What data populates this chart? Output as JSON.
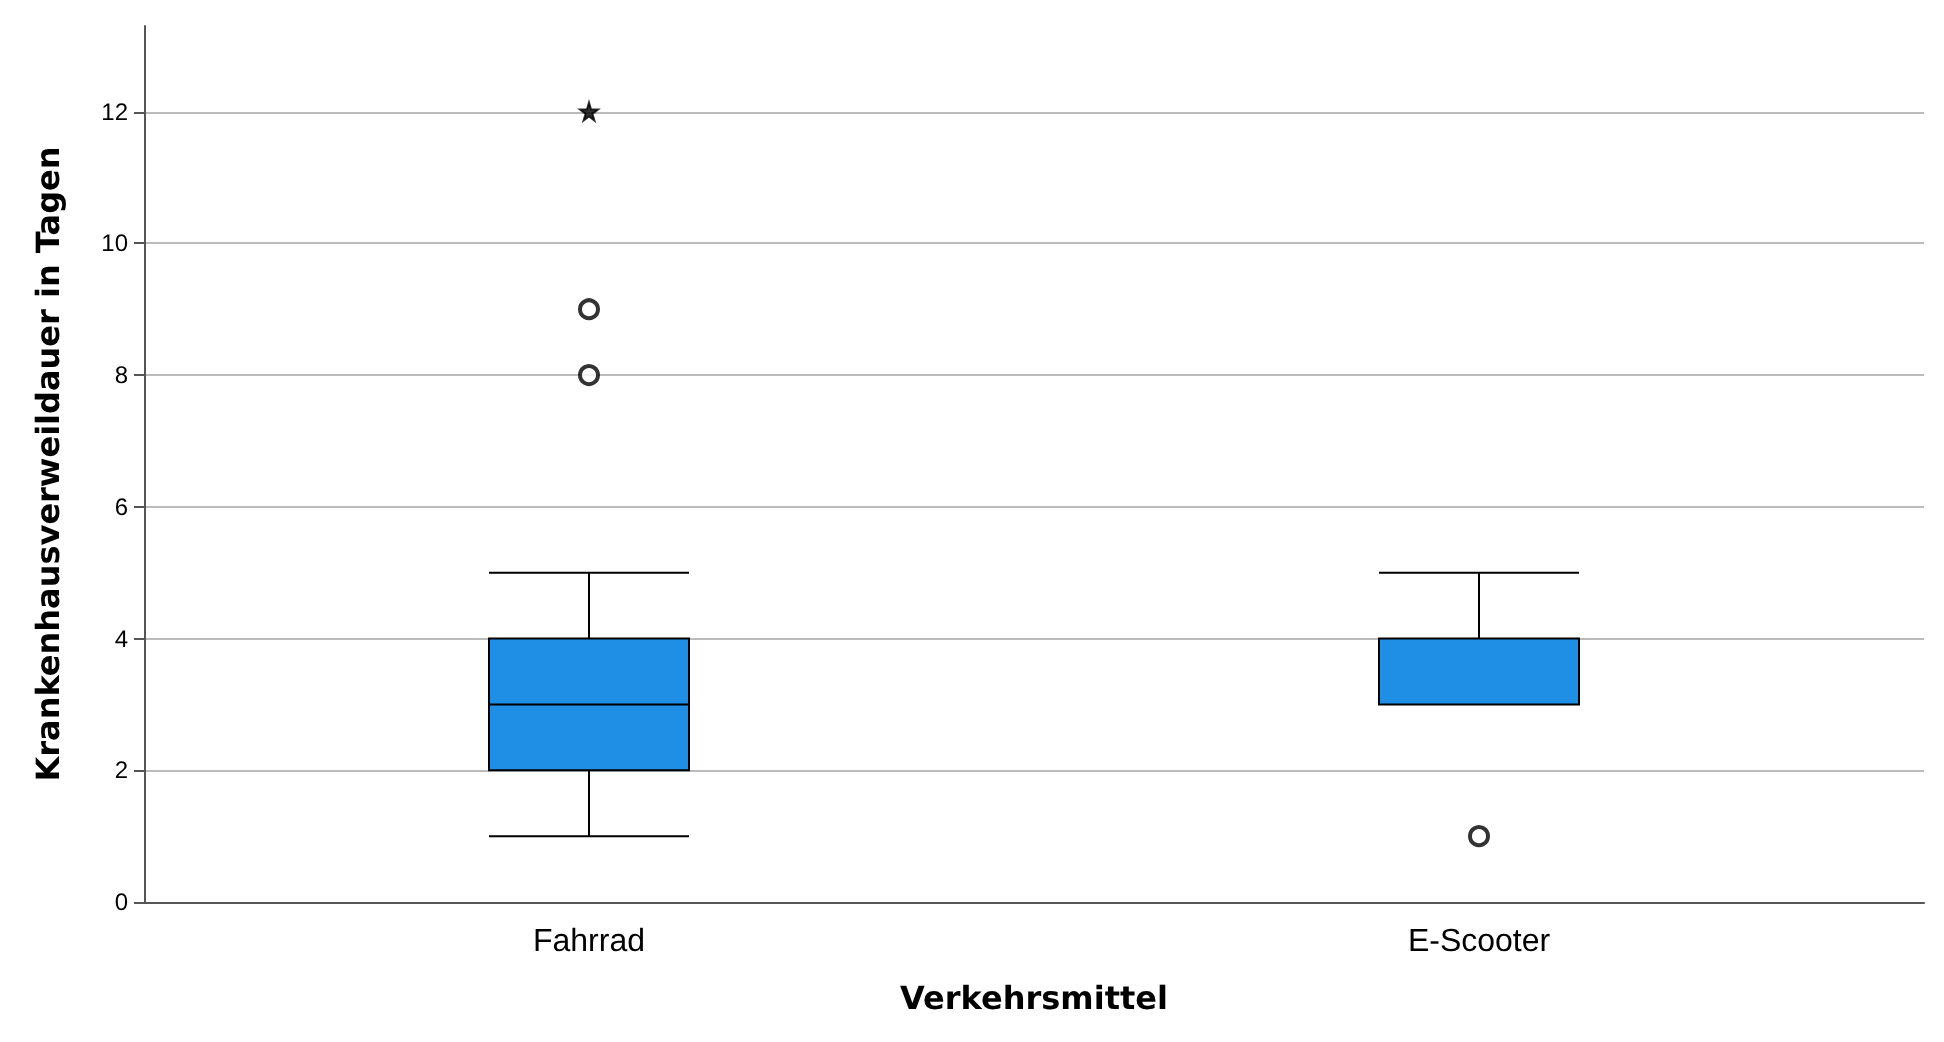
{
  "chart_data": {
    "type": "box",
    "xlabel": "Verkehrsmittel",
    "ylabel": "Krankenhausverweildauer in Tagen",
    "categories": [
      "Fahrrad",
      "E-Scooter"
    ],
    "ylim": [
      0,
      13.3
    ],
    "yticks": [
      0,
      2,
      4,
      6,
      8,
      10,
      12
    ],
    "grid": "y",
    "series": [
      {
        "type": "box",
        "color": "#1f8fe5",
        "boxes": [
          {
            "low": 1,
            "q1": 2,
            "median": 3,
            "q3": 4,
            "high": 5,
            "outliers": [
              8,
              9
            ]
          },
          {
            "low": 3,
            "q1": 3,
            "median": 3,
            "q3": 4,
            "high": 5,
            "outliers": [
              1
            ]
          }
        ]
      },
      {
        "type": "scatter",
        "x": [
          "Fahrrad"
        ],
        "values": [
          12
        ],
        "marker": "star",
        "color": "#000000"
      }
    ]
  }
}
